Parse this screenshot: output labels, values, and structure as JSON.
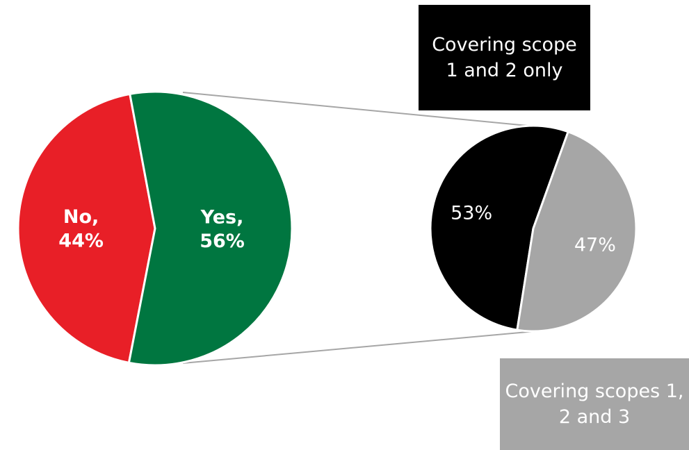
{
  "chart_data": [
    {
      "type": "pie",
      "slices": [
        {
          "label": "No",
          "value": 44,
          "display": "No,\n44%",
          "color": "#e81f27"
        },
        {
          "label": "Yes",
          "value": 56,
          "display": "Yes,\n56%",
          "color": "#007640"
        }
      ]
    },
    {
      "type": "pie",
      "slices": [
        {
          "label": "Covering scope 1 and 2 only",
          "value": 53,
          "display": "53%",
          "color": "#000000"
        },
        {
          "label": "Covering scopes 1, 2 and 3",
          "value": 47,
          "display": "47%",
          "color": "#a6a6a6"
        }
      ]
    }
  ],
  "legend": {
    "scope12": "Covering scope 1 and 2 only",
    "scope123": "Covering scopes 1, 2 and 3"
  }
}
